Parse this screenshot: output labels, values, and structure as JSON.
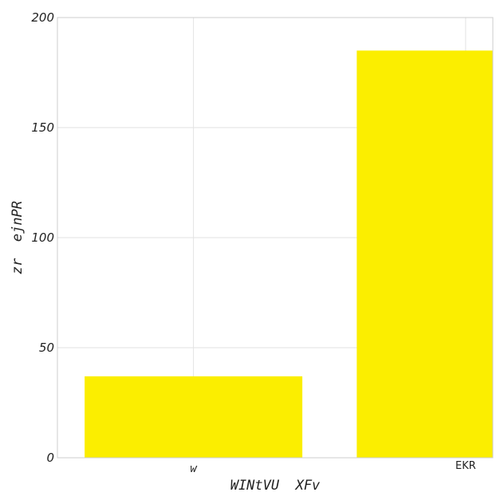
{
  "chart_data": {
    "type": "bar",
    "categories": [
      "w",
      "EKR"
    ],
    "values": [
      37,
      185
    ],
    "xlabel": "WINtVU  XFv",
    "ylabel": "zr  ejnPR",
    "ylim": [
      0,
      200
    ],
    "yticks": [
      "0",
      "50",
      "100",
      "150",
      "200"
    ],
    "grid": true,
    "bar_color": "#fbee00",
    "grid_color": "#e2e2e2",
    "frame_color": "#cccccc"
  }
}
